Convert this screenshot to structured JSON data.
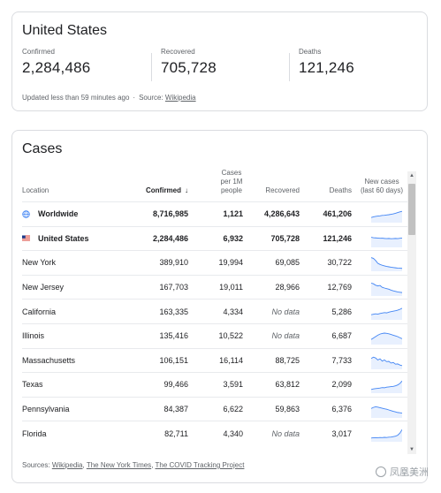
{
  "summary": {
    "title": "United States",
    "stats": [
      {
        "label": "Confirmed",
        "value": "2,284,486"
      },
      {
        "label": "Recovered",
        "value": "705,728"
      },
      {
        "label": "Deaths",
        "value": "121,246"
      }
    ],
    "updated_text": "Updated less than 59 minutes ago",
    "separator": "·",
    "source_prefix": "Source:",
    "source_link": "Wikipedia"
  },
  "cases": {
    "title": "Cases",
    "headers": {
      "location": "Location",
      "confirmed": "Confirmed",
      "confirmed_sort_icon": "arrow-down-icon",
      "per_million_lines": [
        "Cases",
        "per 1M",
        "people"
      ],
      "recovered": "Recovered",
      "deaths": "Deaths",
      "trend_lines": [
        "New cases",
        "(last 60 days)"
      ]
    },
    "rows": [
      {
        "location": "Worldwide",
        "confirmed": "8,716,985",
        "per_million": "1,121",
        "recovered": "4,286,643",
        "deaths": "461,206",
        "icon": "globe-icon",
        "bold": true,
        "trend": [
          3,
          3.5,
          3.8,
          4,
          4.2,
          4.5,
          4.6,
          4.8,
          5,
          5.3,
          5.6,
          6,
          6.5,
          7,
          7.4
        ]
      },
      {
        "location": "United States",
        "confirmed": "2,284,486",
        "per_million": "6,932",
        "recovered": "705,728",
        "deaths": "121,246",
        "icon": "us-flag-icon",
        "bold": true,
        "trend": [
          6.5,
          6.2,
          6.1,
          6,
          5.8,
          5.9,
          5.7,
          5.6,
          5.7,
          5.5,
          5.6,
          5.7,
          5.6,
          5.8,
          6
        ]
      },
      {
        "location": "New York",
        "confirmed": "389,910",
        "per_million": "19,994",
        "recovered": "69,085",
        "deaths": "30,722",
        "trend": [
          9,
          8.5,
          7,
          5,
          4.2,
          3.6,
          3.2,
          2.8,
          2.5,
          2.2,
          2,
          1.8,
          1.6,
          1.5,
          1.4
        ]
      },
      {
        "location": "New Jersey",
        "confirmed": "167,703",
        "per_million": "19,011",
        "recovered": "28,966",
        "deaths": "12,769",
        "trend": [
          8.5,
          8,
          7,
          6.5,
          6.8,
          5.5,
          5,
          4.6,
          4.2,
          3.5,
          3,
          2.6,
          2.2,
          2,
          1.8
        ]
      },
      {
        "location": "California",
        "confirmed": "163,335",
        "per_million": "4,334",
        "recovered": "No data",
        "deaths": "5,286",
        "trend": [
          3,
          3.3,
          3.6,
          3.4,
          3.9,
          4.2,
          4.5,
          4.3,
          4.8,
          5.2,
          5.5,
          5.8,
          6.2,
          6.8,
          7.6
        ]
      },
      {
        "location": "Illinois",
        "confirmed": "135,416",
        "per_million": "10,522",
        "recovered": "No data",
        "deaths": "6,687",
        "trend": [
          3,
          4,
          5,
          6,
          6.8,
          7.2,
          7.5,
          7.3,
          7,
          6.5,
          6,
          5.5,
          5,
          4.2,
          3.5
        ]
      },
      {
        "location": "Massachusetts",
        "confirmed": "106,151",
        "per_million": "16,114",
        "recovered": "88,725",
        "deaths": "7,733",
        "trend": [
          7,
          8,
          7.4,
          6,
          6.8,
          5.2,
          6,
          4.8,
          5,
          3.8,
          4.2,
          3,
          3.2,
          2.4,
          2
        ]
      },
      {
        "location": "Texas",
        "confirmed": "99,466",
        "per_million": "3,591",
        "recovered": "63,812",
        "deaths": "2,099",
        "trend": [
          2,
          2.4,
          2.6,
          2.8,
          3,
          3.3,
          3.2,
          3.6,
          3.8,
          4,
          4.2,
          4.6,
          5.2,
          6.2,
          8
        ]
      },
      {
        "location": "Pennsylvania",
        "confirmed": "84,387",
        "per_million": "6,622",
        "recovered": "59,863",
        "deaths": "6,376",
        "trend": [
          6,
          6.8,
          7.2,
          7,
          6.6,
          6.2,
          5.8,
          5.5,
          5,
          4.5,
          4,
          3.6,
          3.2,
          3,
          2.8
        ]
      },
      {
        "location": "Florida",
        "confirmed": "82,711",
        "per_million": "4,340",
        "recovered": "No data",
        "deaths": "3,017",
        "trend": [
          2,
          2.2,
          2.3,
          2.2,
          2.4,
          2.3,
          2.5,
          2.4,
          2.6,
          2.7,
          3,
          3.3,
          4,
          5.5,
          8
        ]
      }
    ],
    "sources_prefix": "Sources:",
    "sources": [
      "Wikipedia",
      "The New York Times",
      "The COVID Tracking Project"
    ]
  },
  "watermark": {
    "text": "凤凰美洲",
    "icon": "camera-icon"
  },
  "colors": {
    "spark_line": "#4285f4",
    "spark_fill": "#e8f0fe",
    "border": "#dadce0",
    "muted_text": "#5f6368"
  }
}
